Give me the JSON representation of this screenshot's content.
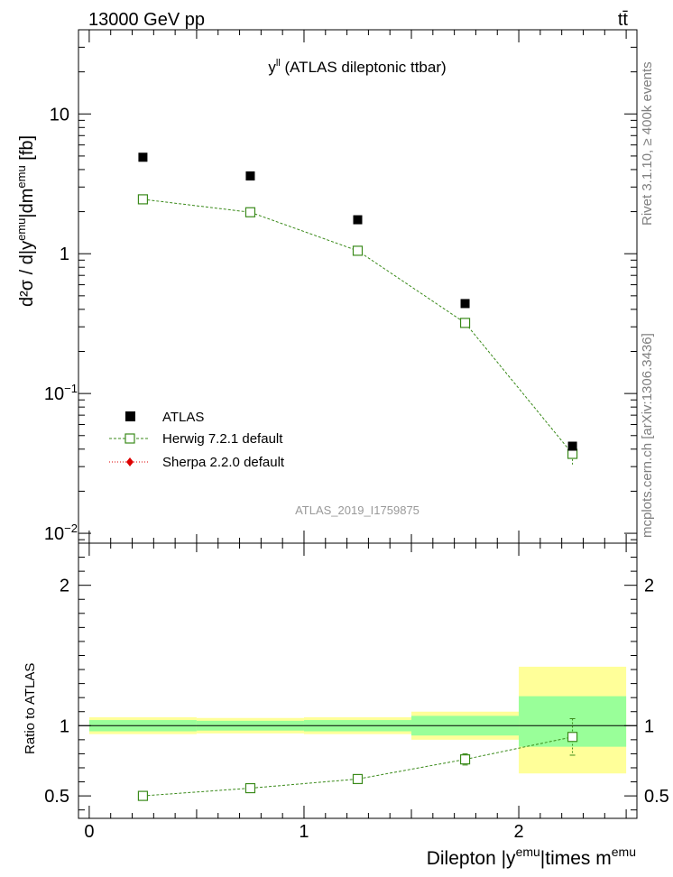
{
  "header": {
    "left": "13000 GeV pp",
    "right": "tt̄"
  },
  "main_title": "y",
  "main_title_sup": "ll",
  "main_title_rest": " (ATLAS dileptonic ttbar)",
  "side_text_top": "Rivet 3.1.10, ≥ 400k events",
  "side_text_bottom": "mcplots.cern.ch [arXiv:1306.3436]",
  "watermark": "ATLAS_2019_I1759875",
  "ylabel_main": "d²σ / d|y",
  "ylabel_main_sup1": "emu",
  "ylabel_main_mid": "|dm",
  "ylabel_main_sup2": "emu",
  "ylabel_main_end": " [fb]",
  "ylabel_ratio": "Ratio to ATLAS",
  "xlabel": "Dilepton |y",
  "xlabel_sup1": "emu",
  "xlabel_mid": "|times m",
  "xlabel_sup2": "emu",
  "legend": {
    "atlas": "ATLAS",
    "herwig": "Herwig 7.2.1 default",
    "sherpa": "Sherpa 2.2.0 default"
  },
  "colors": {
    "data": "#000000",
    "herwig": "#3a8a1a",
    "sherpa": "#dd0000",
    "band_inner": "#99ff99",
    "band_outer": "#ffff99"
  },
  "chart_data": [
    {
      "type": "scatter",
      "panel": "main",
      "yscale": "log",
      "ylim": [
        0.0085,
        40
      ],
      "xlim": [
        -0.05,
        2.55
      ],
      "ytick_labels": [
        "10⁻²",
        "10⁻¹",
        "1",
        "10"
      ],
      "yticks": [
        0.01,
        0.1,
        1,
        10
      ],
      "x": [
        0.25,
        0.75,
        1.25,
        1.75,
        2.25
      ],
      "series": [
        {
          "name": "ATLAS",
          "values": [
            4.9,
            3.6,
            1.75,
            0.44,
            0.042
          ]
        },
        {
          "name": "Herwig 7.2.1 default",
          "values": [
            2.45,
            1.98,
            1.05,
            0.32,
            0.037
          ],
          "err_lo": [
            2.4,
            1.93,
            1.02,
            0.305,
            0.031
          ],
          "err_hi": [
            2.5,
            2.03,
            1.08,
            0.335,
            0.043
          ]
        }
      ]
    },
    {
      "type": "scatter",
      "panel": "ratio",
      "ylim": [
        0.34,
        2.3
      ],
      "yticks": [
        0.5,
        1,
        2
      ],
      "ytick_labels": [
        "0.5",
        "1",
        "2"
      ],
      "xticks": [
        0,
        1,
        2
      ],
      "xtick_labels": [
        "0",
        "1",
        "2"
      ],
      "xlim": [
        -0.05,
        2.55
      ],
      "x": [
        0.25,
        0.75,
        1.25,
        1.75,
        2.25
      ],
      "series": [
        {
          "name": "Herwig 7.2.1 default",
          "values": [
            0.5,
            0.555,
            0.62,
            0.76,
            0.92
          ],
          "err_lo": [
            0.49,
            0.545,
            0.61,
            0.72,
            0.79
          ],
          "err_hi": [
            0.51,
            0.565,
            0.63,
            0.8,
            1.05
          ]
        }
      ],
      "bands": [
        {
          "x0": 0.0,
          "x1": 0.5,
          "inner": [
            0.96,
            1.04
          ],
          "outer": [
            0.94,
            1.06
          ]
        },
        {
          "x0": 0.5,
          "x1": 1.0,
          "inner": [
            0.965,
            1.035
          ],
          "outer": [
            0.945,
            1.055
          ]
        },
        {
          "x0": 1.0,
          "x1": 1.5,
          "inner": [
            0.96,
            1.04
          ],
          "outer": [
            0.94,
            1.06
          ]
        },
        {
          "x0": 1.5,
          "x1": 2.0,
          "inner": [
            0.93,
            1.07
          ],
          "outer": [
            0.9,
            1.1
          ]
        },
        {
          "x0": 2.0,
          "x1": 2.5,
          "inner": [
            0.85,
            1.21
          ],
          "outer": [
            0.66,
            1.42
          ]
        }
      ]
    }
  ]
}
